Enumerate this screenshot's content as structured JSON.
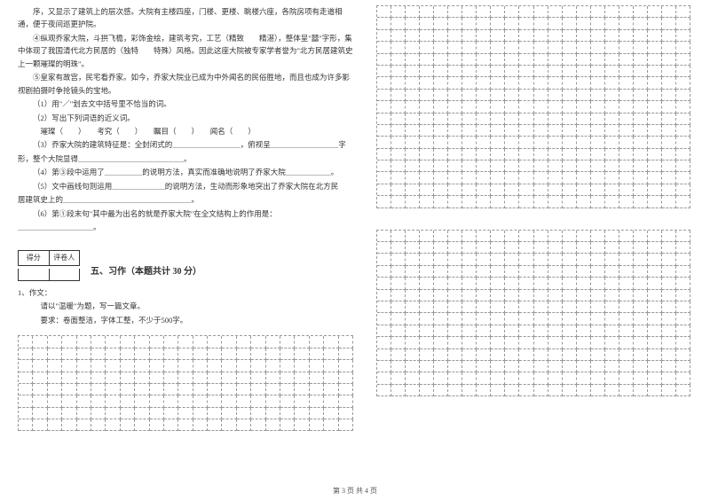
{
  "passage": {
    "p1": "序，又显示了建筑上的层次感。大院有主楼四座，门楼、更楼、眺楼六座，各院房项有走道相通，便于夜间巡更护院。",
    "p2": "④纵观乔家大院，斗拱飞檐，彩饰金绘，建筑考究，工艺（精致　　精湛），整体呈\"囍\"字形，集中体现了我国清代北方民居的（独特　　特殊）风格。因此这座大院被专家学者誉为\"北方民居建筑史上一颗璀璨的明珠\"。",
    "p3": "⑤皇家有故宫，民宅看乔家。如今，乔家大院业已成为中外闻名的民俗胜地，而且也成为许多影视剧拍摄时争抢镜头的宝地。"
  },
  "questions": {
    "q1": "（1）用\"／\"划去文中括号里不恰当的词。",
    "q2": "（2）写出下列词语的近义词。",
    "q2b": "璀璨（　　）　　考究（　　）　　瞩目（　　）　　闻名（　　）",
    "q3a": "（3）乔家大院的建筑特征是：全封闭式的＿＿＿＿＿＿＿＿＿，俯视呈＿＿＿＿＿＿＿＿＿字",
    "q3b": "形，整个大院显得＿＿＿＿＿＿＿＿＿＿＿＿＿＿。",
    "q4": "（4）第③段中运用了＿＿＿＿＿的说明方法，真实而准确地说明了乔家大院＿＿＿＿＿＿。",
    "q5a": "（5）文中画线句则运用＿＿＿＿＿＿＿的说明方法，生动而形象地突出了乔家大院在北方民",
    "q5b": "居建筑史上的＿＿＿＿＿＿＿＿＿＿＿＿＿＿＿＿＿。",
    "q6": "（6）第①段末句\"其中最为出名的就是乔家大院\"在全文结构上的作用是：",
    "q6b": "＿＿＿＿＿＿＿＿＿＿。"
  },
  "scorebox": {
    "left": "得分",
    "right": "评卷人"
  },
  "section5": {
    "title": "五、习作（本题共计 30 分）"
  },
  "zuowen": {
    "l1": "1、作文：",
    "l2": "请以\"温暖\"为题，写一篇文章。",
    "l3": "要求：卷面整洁，字体工整，不少于500字。"
  },
  "footer": "第 3 页 共 4 页",
  "grid": {
    "top_cols": 22,
    "top_rows": 17,
    "mid_cols": 22,
    "mid_rows": 14,
    "bot_cols": 23,
    "bot_rows": 8,
    "border_color": "#999999"
  }
}
